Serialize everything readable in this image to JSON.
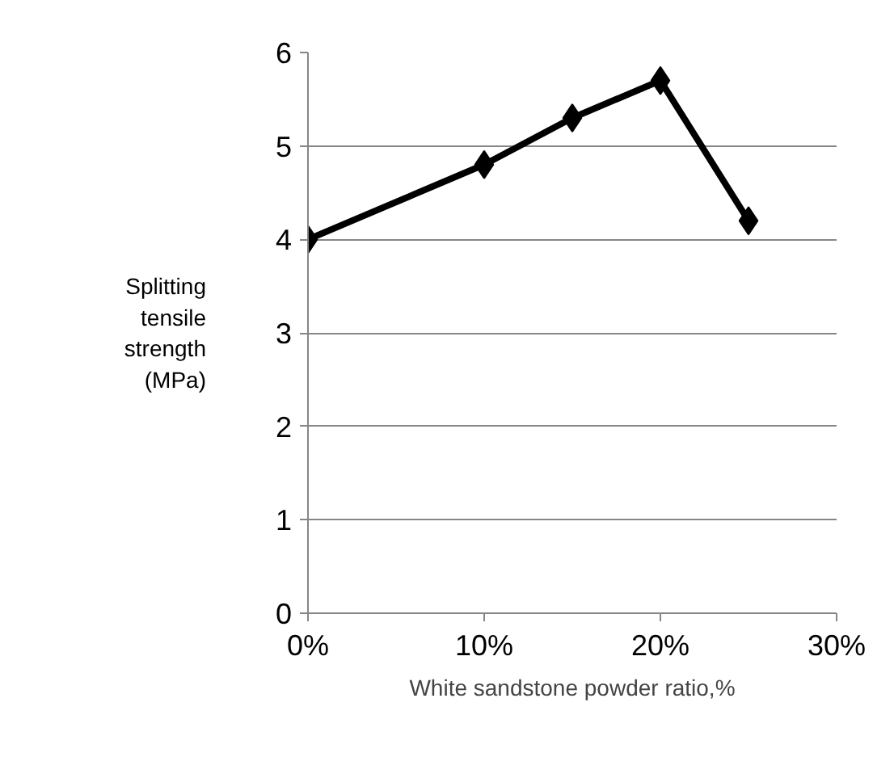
{
  "chart_data": {
    "type": "line",
    "xlabel": "White sandstone powder ratio,%",
    "ylabel": "Splitting tensile strength (MPa)",
    "x": [
      0,
      10,
      15,
      20,
      25
    ],
    "series": [
      {
        "color": "#000000",
        "values": [
          4.0,
          4.8,
          5.3,
          5.7,
          4.2
        ]
      }
    ],
    "xlim": [
      0,
      30
    ],
    "xticks": [
      {
        "value": 0,
        "label": "0%"
      },
      {
        "value": 10,
        "label": "10%"
      },
      {
        "value": 20,
        "label": "20%"
      },
      {
        "value": 30,
        "label": "30%"
      }
    ],
    "ylim": [
      0,
      6
    ],
    "yticks": [
      0,
      1,
      2,
      3,
      4,
      5,
      6
    ],
    "grid": "y",
    "marker": "diamond",
    "line_style": "solid"
  }
}
